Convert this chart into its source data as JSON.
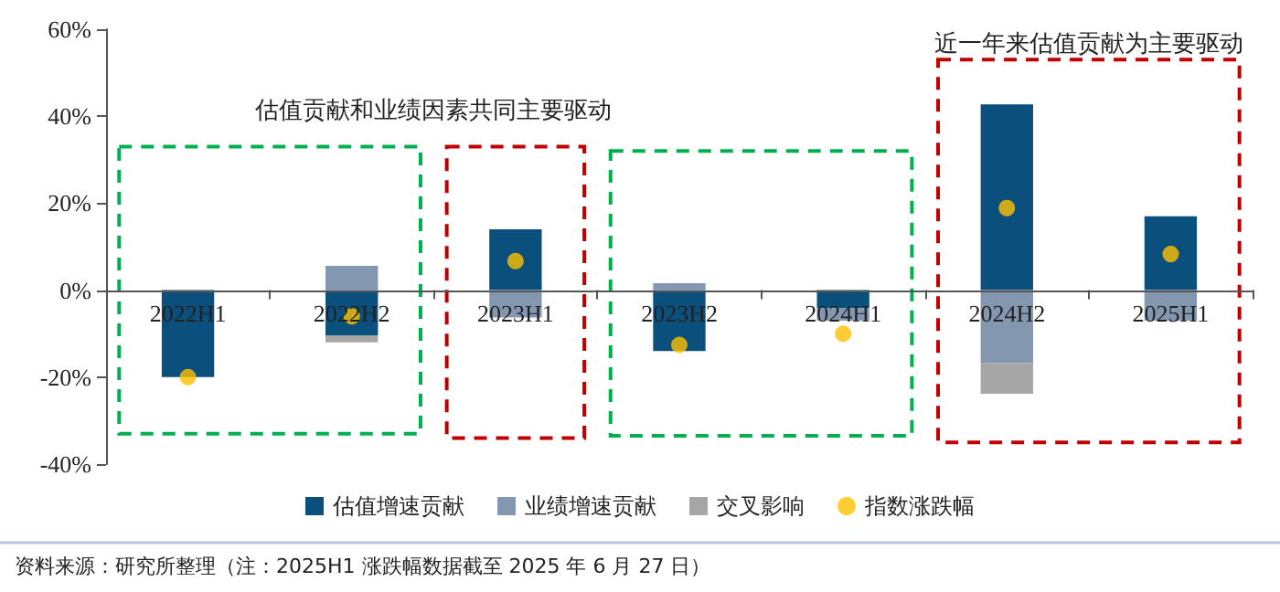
{
  "chart_data": {
    "type": "bar",
    "stacked": true,
    "categories": [
      "2022H1",
      "2022H2",
      "2023H1",
      "2023H2",
      "2024H1",
      "2024H2",
      "2025H1"
    ],
    "series": [
      {
        "name": "估值增速贡献",
        "color": "#0b4f7c",
        "values": [
          -20,
          -10.5,
          14,
          -14,
          -4.2,
          42.7,
          17
        ]
      },
      {
        "name": "业绩增速贡献",
        "color": "#8497b0",
        "values": [
          null,
          5.6,
          -6.3,
          1.6,
          -2.8,
          -16.8,
          -7
        ]
      },
      {
        "name": "交叉影响",
        "color": "#a6a6a6",
        "values": [
          null,
          -1.5,
          null,
          null,
          null,
          -7,
          null
        ]
      },
      {
        "name": "指数涨跌幅",
        "type": "scatter",
        "color": "#ffc000",
        "x": [
          "2022H1",
          "2022H2",
          "2023H1",
          "2023H2",
          "2024H1",
          "2024H2",
          "2025H1"
        ],
        "values": [
          -20,
          -6,
          6.7,
          -12.6,
          -10,
          18.9,
          8.3
        ]
      }
    ],
    "ylim": [
      -40,
      60
    ],
    "yticks": [
      {
        "value": -40,
        "label": "-40%"
      },
      {
        "value": -20,
        "label": "-20%"
      },
      {
        "value": 0,
        "label": "0%"
      },
      {
        "value": 20,
        "label": "20%"
      },
      {
        "value": 40,
        "label": "40%"
      },
      {
        "value": 60,
        "label": "60%"
      }
    ],
    "legend": "bottom",
    "marker": "circle",
    "annotations": [
      "估值贡献和业绩因素共同主要驱动",
      "近一年来估值贡献为主要驱动",
      "资料来源：研究所整理（注：2025H1 涨跌幅数据截至 2025 年 6 月 27 日）"
    ]
  }
}
